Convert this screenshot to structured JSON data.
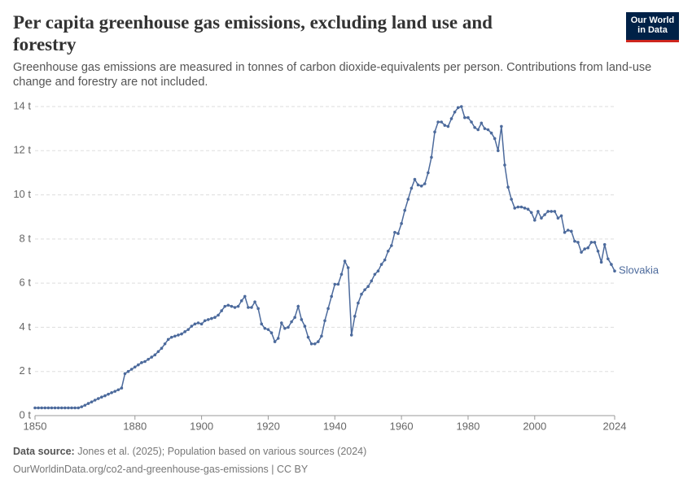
{
  "chart_data": {
    "type": "line",
    "title": "Per capita greenhouse gas emissions, excluding land use and forestry",
    "subtitle": "Greenhouse gas emissions are measured in tonnes of carbon dioxide-equivalents per person. Contributions from land-use change and forestry are not included.",
    "logo": [
      "Our World",
      "in Data"
    ],
    "source_label": "Data source:",
    "source": "Jones et al. (2025); Population based on various sources (2024)",
    "url": "OurWorldinData.org/co2-and-greenhouse-gas-emissions | CC BY",
    "x": [
      1850,
      1851,
      1852,
      1853,
      1854,
      1855,
      1856,
      1857,
      1858,
      1859,
      1860,
      1861,
      1862,
      1863,
      1864,
      1865,
      1866,
      1867,
      1868,
      1869,
      1870,
      1871,
      1872,
      1873,
      1874,
      1875,
      1876,
      1877,
      1878,
      1879,
      1880,
      1881,
      1882,
      1883,
      1884,
      1885,
      1886,
      1887,
      1888,
      1889,
      1890,
      1891,
      1892,
      1893,
      1894,
      1895,
      1896,
      1897,
      1898,
      1899,
      1900,
      1901,
      1902,
      1903,
      1904,
      1905,
      1906,
      1907,
      1908,
      1909,
      1910,
      1911,
      1912,
      1913,
      1914,
      1915,
      1916,
      1917,
      1918,
      1919,
      1920,
      1921,
      1922,
      1923,
      1924,
      1925,
      1926,
      1927,
      1928,
      1929,
      1930,
      1931,
      1932,
      1933,
      1934,
      1935,
      1936,
      1937,
      1938,
      1939,
      1940,
      1941,
      1942,
      1943,
      1944,
      1945,
      1946,
      1947,
      1948,
      1949,
      1950,
      1951,
      1952,
      1953,
      1954,
      1955,
      1956,
      1957,
      1958,
      1959,
      1960,
      1961,
      1962,
      1963,
      1964,
      1965,
      1966,
      1967,
      1968,
      1969,
      1970,
      1971,
      1972,
      1973,
      1974,
      1975,
      1976,
      1977,
      1978,
      1979,
      1980,
      1981,
      1982,
      1983,
      1984,
      1985,
      1986,
      1987,
      1988,
      1989,
      1990,
      1991,
      1992,
      1993,
      1994,
      1995,
      1996,
      1997,
      1998,
      1999,
      2000,
      2001,
      2002,
      2003,
      2004,
      2005,
      2006,
      2007,
      2008,
      2009,
      2010,
      2011,
      2012,
      2013,
      2014,
      2015,
      2016,
      2017,
      2018,
      2019,
      2020,
      2021,
      2022,
      2023,
      2024
    ],
    "series": [
      {
        "name": "Slovakia",
        "color": "#4c6a9c",
        "values": [
          0.35,
          0.35,
          0.35,
          0.35,
          0.35,
          0.35,
          0.35,
          0.35,
          0.35,
          0.35,
          0.35,
          0.35,
          0.35,
          0.35,
          0.4,
          0.47,
          0.55,
          0.62,
          0.7,
          0.77,
          0.84,
          0.9,
          0.97,
          1.04,
          1.1,
          1.17,
          1.25,
          1.9,
          2.0,
          2.1,
          2.2,
          2.3,
          2.4,
          2.45,
          2.55,
          2.65,
          2.75,
          2.9,
          3.05,
          3.25,
          3.45,
          3.55,
          3.6,
          3.65,
          3.7,
          3.8,
          3.9,
          4.05,
          4.15,
          4.2,
          4.15,
          4.3,
          4.35,
          4.4,
          4.45,
          4.55,
          4.75,
          4.95,
          5.0,
          4.95,
          4.9,
          4.95,
          5.2,
          5.4,
          4.9,
          4.9,
          5.15,
          4.85,
          4.15,
          3.95,
          3.9,
          3.75,
          3.35,
          3.5,
          4.2,
          3.95,
          4.0,
          4.25,
          4.45,
          4.95,
          4.35,
          4.05,
          3.55,
          3.25,
          3.25,
          3.35,
          3.6,
          4.3,
          4.85,
          5.4,
          5.95,
          5.95,
          6.4,
          7.0,
          6.7,
          3.65,
          4.5,
          5.1,
          5.5,
          5.7,
          5.85,
          6.1,
          6.4,
          6.55,
          6.85,
          7.05,
          7.45,
          7.7,
          8.3,
          8.25,
          8.7,
          9.3,
          9.8,
          10.3,
          10.7,
          10.45,
          10.4,
          10.5,
          11.0,
          11.7,
          12.85,
          13.3,
          13.3,
          13.15,
          13.1,
          13.45,
          13.75,
          13.95,
          14.0,
          13.5,
          13.5,
          13.3,
          13.05,
          12.95,
          13.25,
          13.0,
          12.95,
          12.8,
          12.55,
          12.0,
          13.1,
          11.35,
          10.35,
          9.8,
          9.4,
          9.45,
          9.45,
          9.4,
          9.35,
          9.2,
          8.85,
          9.25,
          8.95,
          9.1,
          9.25,
          9.25,
          9.25,
          8.95,
          9.05,
          8.3,
          8.4,
          8.35,
          7.9,
          7.85,
          7.4,
          7.55,
          7.6,
          7.85,
          7.85,
          7.45,
          6.95,
          7.75,
          7.1,
          6.85,
          6.55
        ]
      }
    ],
    "xlim": [
      1850,
      2024
    ],
    "xticks": [
      1850,
      1880,
      1900,
      1920,
      1940,
      1960,
      1980,
      2000,
      2024
    ],
    "ylim": [
      0,
      14
    ],
    "yticks": [
      {
        "value": 0,
        "label": "0 t"
      },
      {
        "value": 2,
        "label": "2 t"
      },
      {
        "value": 4,
        "label": "4 t"
      },
      {
        "value": 6,
        "label": "6 t"
      },
      {
        "value": 8,
        "label": "8 t"
      },
      {
        "value": 10,
        "label": "10 t"
      },
      {
        "value": 12,
        "label": "12 t"
      },
      {
        "value": 14,
        "label": "14 t"
      }
    ],
    "grid": true
  }
}
